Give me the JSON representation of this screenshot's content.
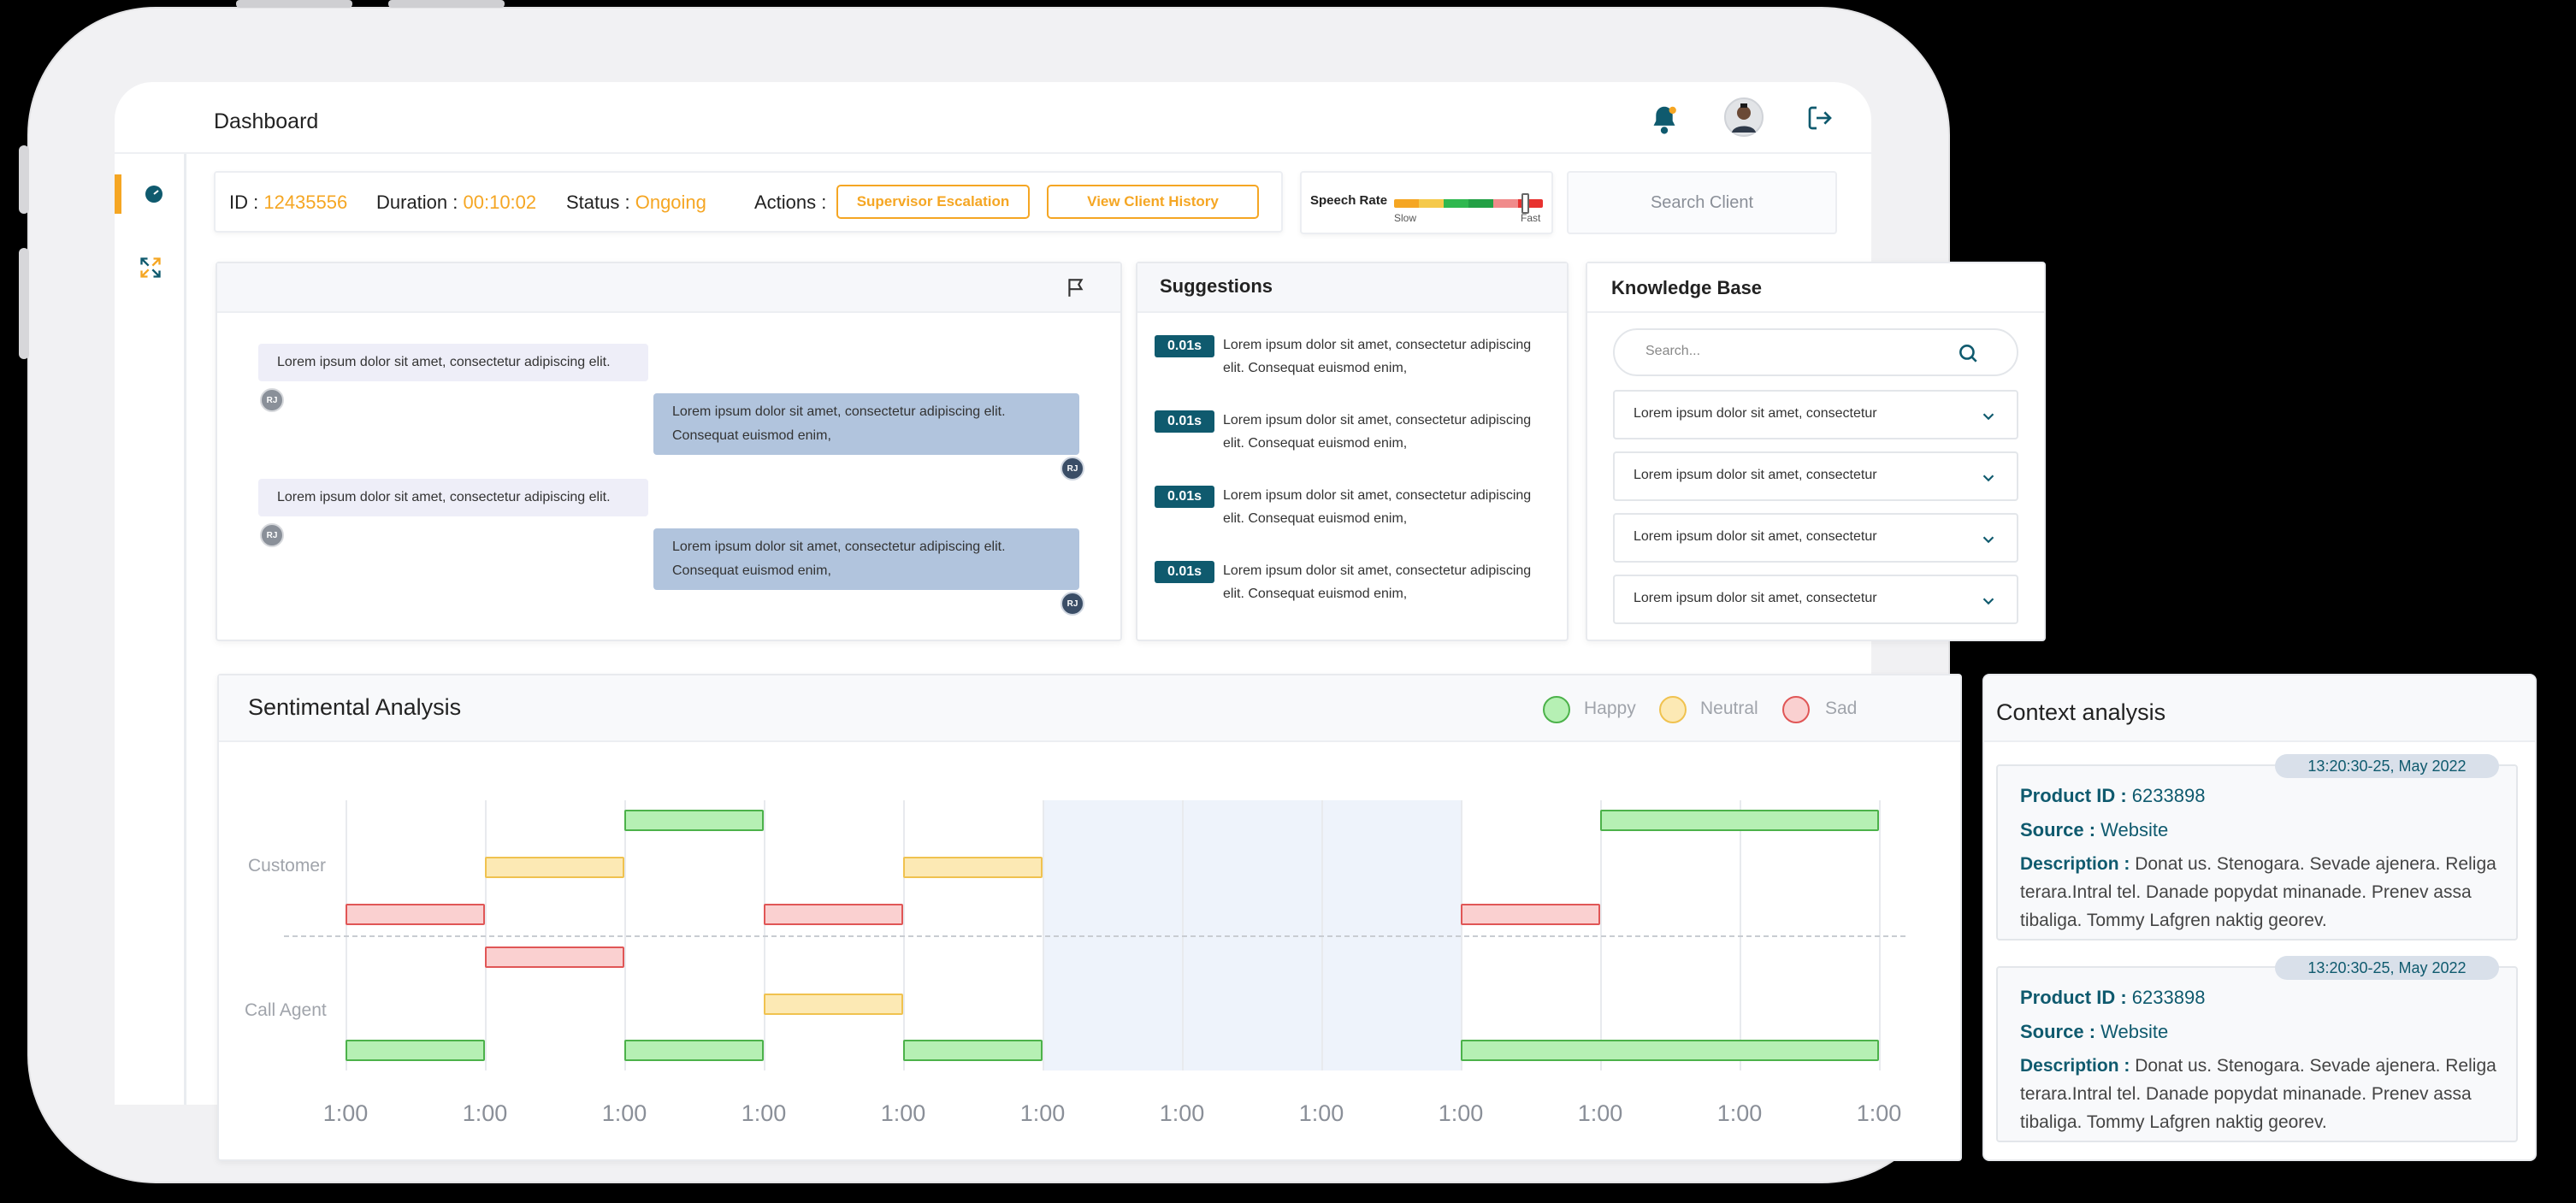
{
  "header": {
    "title": "Dashboard"
  },
  "info": {
    "id_label": "ID : ",
    "id_value": "12435556",
    "duration_label": "Duration : ",
    "duration_value": "00:10:02",
    "status_label": "Status : ",
    "status_value": "Ongoing",
    "actions_label": "Actions :",
    "supervisor_button": "Supervisor Escalation",
    "history_button": "View Client History"
  },
  "speech_rate": {
    "label": "Speech Rate",
    "slow": "Slow",
    "fast": "Fast",
    "level": 0.88
  },
  "search_client": {
    "label": "Search Client"
  },
  "chat": {
    "messages": [
      {
        "side": "left",
        "lines": [
          "Lorem ipsum dolor sit amet, consectetur adipiscing elit."
        ],
        "avatar": "RJ"
      },
      {
        "side": "right",
        "lines": [
          "Lorem ipsum dolor sit amet, consectetur adipiscing elit.",
          "Consequat euismod enim,"
        ],
        "avatar": "RJ"
      },
      {
        "side": "left",
        "lines": [
          "Lorem ipsum dolor sit amet, consectetur adipiscing elit."
        ],
        "avatar": "RJ"
      },
      {
        "side": "right",
        "lines": [
          "Lorem ipsum dolor sit amet, consectetur adipiscing elit.",
          "Consequat euismod enim,"
        ],
        "avatar": "RJ"
      }
    ]
  },
  "suggestions": {
    "title": "Suggestions",
    "items": [
      {
        "time": "0.01s",
        "line1": "Lorem ipsum dolor sit amet, consectetur adipiscing",
        "line2": "elit. Consequat euismod enim,"
      },
      {
        "time": "0.01s",
        "line1": "Lorem ipsum dolor sit amet, consectetur adipiscing",
        "line2": "elit. Consequat euismod enim,"
      },
      {
        "time": "0.01s",
        "line1": "Lorem ipsum dolor sit amet, consectetur adipiscing",
        "line2": "elit. Consequat euismod enim,"
      },
      {
        "time": "0.01s",
        "line1": "Lorem ipsum dolor sit amet, consectetur adipiscing",
        "line2": "elit. Consequat euismod enim,"
      }
    ]
  },
  "knowledge_base": {
    "title": "Knowledge Base",
    "search_placeholder": "Search...",
    "items": [
      "Lorem ipsum dolor sit amet, consectetur",
      "Lorem ipsum dolor sit amet, consectetur",
      "Lorem ipsum dolor sit amet, consectetur",
      "Lorem ipsum dolor sit amet, consectetur"
    ]
  },
  "sentiment": {
    "title": "Sentimental Analysis",
    "legend": [
      {
        "name": "Happy",
        "color": "#b6f0b4",
        "border": "#4cb24a"
      },
      {
        "name": "Neutral",
        "color": "#fce9b4",
        "border": "#f0c24f"
      },
      {
        "name": "Sad",
        "color": "#fad0d0",
        "border": "#e05656"
      }
    ],
    "rows": [
      "Customer",
      "Call Agent"
    ],
    "ticks": [
      "1:00",
      "1:00",
      "1:00",
      "1:00",
      "1:00",
      "1:00",
      "1:00",
      "1:00",
      "1:00",
      "1:00",
      "1:00",
      "1:00"
    ]
  },
  "chart_data": {
    "type": "timeline",
    "title": "Sentimental Analysis",
    "categories": [
      "Customer",
      "Call Agent"
    ],
    "x_ticks": [
      "1:00",
      "1:00",
      "1:00",
      "1:00",
      "1:00",
      "1:00",
      "1:00",
      "1:00",
      "1:00",
      "1:00",
      "1:00",
      "1:00"
    ],
    "highlight_interval": [
      5,
      8
    ],
    "series": [
      {
        "row": "Customer",
        "segments": [
          {
            "start": 0,
            "end": 1,
            "sentiment": "Sad"
          },
          {
            "start": 1,
            "end": 2,
            "sentiment": "Neutral"
          },
          {
            "start": 2,
            "end": 3,
            "sentiment": "Happy"
          },
          {
            "start": 3,
            "end": 4,
            "sentiment": "Sad"
          },
          {
            "start": 4,
            "end": 5,
            "sentiment": "Neutral"
          },
          {
            "start": 8,
            "end": 9,
            "sentiment": "Sad"
          },
          {
            "start": 9,
            "end": 11,
            "sentiment": "Happy"
          }
        ]
      },
      {
        "row": "Call Agent",
        "segments": [
          {
            "start": 0,
            "end": 1,
            "sentiment": "Happy"
          },
          {
            "start": 1,
            "end": 2,
            "sentiment": "Sad"
          },
          {
            "start": 2,
            "end": 3,
            "sentiment": "Happy"
          },
          {
            "start": 3,
            "end": 4,
            "sentiment": "Neutral"
          },
          {
            "start": 4,
            "end": 5,
            "sentiment": "Happy"
          },
          {
            "start": 8,
            "end": 11,
            "sentiment": "Happy"
          }
        ]
      }
    ]
  },
  "context": {
    "title": "Context analysis",
    "cards": [
      {
        "time": "13:20:30-25, May 2022",
        "product_label": "Product ID : ",
        "product_value": "6233898",
        "source_label": "Source : ",
        "source_value": "Website",
        "desc_label": "Description : ",
        "desc_text": "Donat us. Stenogara. Sevade ajenera. Religa terara.Intral tel. Danade popydat minanade. Prenev assa tibaliga. Tommy Lafgren naktig georev."
      },
      {
        "time": "13:20:30-25, May 2022",
        "product_label": "Product ID : ",
        "product_value": "6233898",
        "source_label": "Source : ",
        "source_value": "Website",
        "desc_label": "Description : ",
        "desc_text": "Donat us. Stenogara. Sevade ajenera. Religa terara.Intral tel. Danade popydat minanade. Prenev assa tibaliga. Tommy Lafgren naktig georev."
      }
    ]
  },
  "user": {
    "initials": "RJ"
  }
}
